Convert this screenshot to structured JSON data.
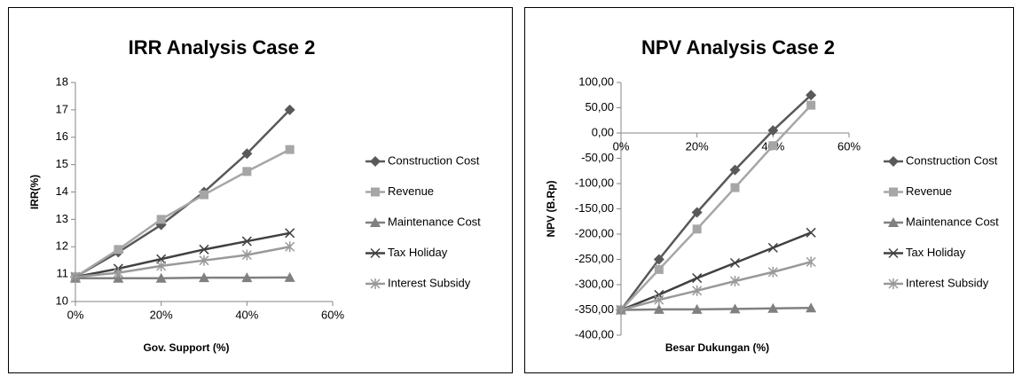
{
  "chart_data": [
    {
      "type": "line",
      "title": "IRR Analysis Case 2",
      "x_label": "Gov. Support (%)",
      "y_label": "IRR(%)",
      "x": [
        0,
        10,
        20,
        30,
        40,
        50
      ],
      "xlim": [
        0,
        60
      ],
      "xticks": [
        {
          "value": 0,
          "label": "0%"
        },
        {
          "value": 20,
          "label": "20%"
        },
        {
          "value": 40,
          "label": "40%"
        },
        {
          "value": 60,
          "label": "60%"
        }
      ],
      "ylim": [
        10,
        18
      ],
      "yticks": [
        10,
        11,
        12,
        13,
        14,
        15,
        16,
        17,
        18
      ],
      "grid": false,
      "legend": "right",
      "series": [
        {
          "name": "Construction Cost",
          "color": "#595959",
          "marker": "diamond",
          "values": [
            10.9,
            11.8,
            12.8,
            14.0,
            15.4,
            17.0
          ]
        },
        {
          "name": "Revenue",
          "color": "#a6a6a6",
          "marker": "square",
          "values": [
            10.9,
            11.9,
            13.0,
            13.9,
            14.75,
            15.55
          ]
        },
        {
          "name": "Maintenance Cost",
          "color": "#808080",
          "marker": "triangle",
          "values": [
            10.85,
            10.85,
            10.85,
            10.87,
            10.87,
            10.88
          ]
        },
        {
          "name": "Tax Holiday",
          "color": "#404040",
          "marker": "x",
          "values": [
            10.9,
            11.2,
            11.55,
            11.9,
            12.2,
            12.5
          ]
        },
        {
          "name": "Interest Subsidy",
          "color": "#999999",
          "marker": "star",
          "values": [
            10.9,
            11.05,
            11.3,
            11.5,
            11.7,
            12.0
          ]
        }
      ]
    },
    {
      "type": "line",
      "title": "NPV Analysis Case  2",
      "x_label": "Besar Dukungan (%)",
      "y_label": "NPV (B.Rp)",
      "x": [
        0,
        10,
        20,
        30,
        40,
        50
      ],
      "xlim": [
        0,
        60
      ],
      "xticks": [
        {
          "value": 0,
          "label": "0%"
        },
        {
          "value": 20,
          "label": "20%"
        },
        {
          "value": 40,
          "label": "40%"
        },
        {
          "value": 60,
          "label": "60%"
        }
      ],
      "ylim": [
        -400,
        100
      ],
      "yticks": [
        {
          "value": -400,
          "label": "-400,00"
        },
        {
          "value": -350,
          "label": "-350,00"
        },
        {
          "value": -300,
          "label": "-300,00"
        },
        {
          "value": -250,
          "label": "-250,00"
        },
        {
          "value": -200,
          "label": "-200,00"
        },
        {
          "value": -150,
          "label": "-150,00"
        },
        {
          "value": -100,
          "label": "-100,00"
        },
        {
          "value": -50,
          "label": "-50,00"
        },
        {
          "value": 0,
          "label": "0,00"
        },
        {
          "value": 50,
          "label": "50,00"
        },
        {
          "value": 100,
          "label": "100,00"
        }
      ],
      "grid": false,
      "legend": "right",
      "series": [
        {
          "name": "Construction Cost",
          "color": "#595959",
          "marker": "diamond",
          "values": [
            -350,
            -250,
            -157,
            -73,
            5,
            75
          ]
        },
        {
          "name": "Revenue",
          "color": "#a6a6a6",
          "marker": "square",
          "values": [
            -350,
            -270,
            -190,
            -108,
            -25,
            55
          ]
        },
        {
          "name": "Maintenance Cost",
          "color": "#808080",
          "marker": "triangle",
          "values": [
            -350,
            -349,
            -349,
            -348,
            -347,
            -346
          ]
        },
        {
          "name": "Tax Holiday",
          "color": "#404040",
          "marker": "x",
          "values": [
            -350,
            -320,
            -287,
            -257,
            -227,
            -197
          ]
        },
        {
          "name": "Interest Subsidy",
          "color": "#999999",
          "marker": "star",
          "values": [
            -350,
            -330,
            -312,
            -293,
            -275,
            -255
          ]
        }
      ]
    }
  ]
}
